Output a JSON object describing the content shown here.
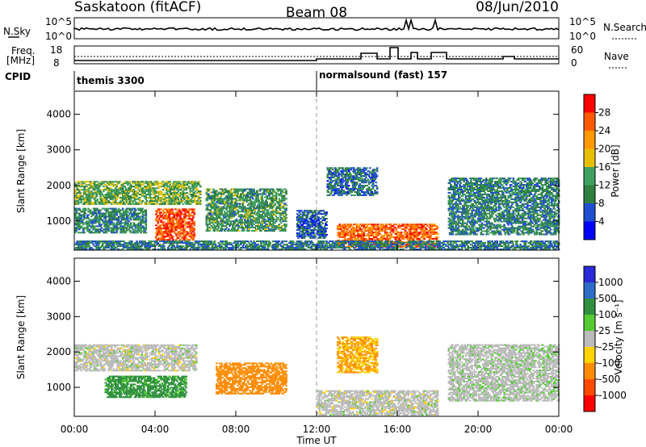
{
  "header": {
    "title_left": "Saskatoon (fitACF)",
    "title_center": "Beam 08",
    "title_right": "08/Jun/2010"
  },
  "panels": {
    "nsky": {
      "left_label": "N.Sky",
      "right_label": "N.Search",
      "tick_top": "10^5",
      "tick_bottom": "10^0",
      "ylim_log10": [
        0,
        5
      ]
    },
    "freq": {
      "left_label_1": "Freq.",
      "left_label_2": "[MHz]",
      "left_tick_top": "18",
      "left_tick_bottom": "8",
      "right_label": "Nave",
      "right_tick_top": "60",
      "right_tick_bottom": "0"
    },
    "cpid": {
      "label": "CPID",
      "entries": [
        {
          "text": "themis 3300",
          "start_hour": 0
        },
        {
          "text": "normalsound (fast) 157",
          "start_hour": 12
        }
      ]
    }
  },
  "xaxis": {
    "label": "Time UT",
    "ticks": [
      "00:00",
      "04:00",
      "08:00",
      "12:00",
      "16:00",
      "20:00",
      "00:00"
    ]
  },
  "yaxis": {
    "label": "Slant Range [km]",
    "ticks": [
      "1000",
      "2000",
      "3000",
      "4000"
    ]
  },
  "colorbars": {
    "power": {
      "label": "Power [dB]",
      "ticks": [
        "4",
        "8",
        "12",
        "16",
        "20",
        "24",
        "28"
      ],
      "colors": [
        "#0000ff",
        "#1f4ed0",
        "#2f7f3f",
        "#3fa060",
        "#e6c000",
        "#ff9900",
        "#ff5a00",
        "#ff0000"
      ]
    },
    "velocity": {
      "label": "Velocity [m s⁻¹]",
      "ticks": [
        "1000",
        "500",
        "100",
        "25",
        "-25",
        "-100",
        "-500",
        "-1000"
      ],
      "colors": [
        "#2a2ad8",
        "#2e6cc8",
        "#2f8f3f",
        "#55cc33",
        "#bbbbbb",
        "#ffd200",
        "#ff8c00",
        "#ff4a00",
        "#ff0000"
      ]
    }
  },
  "chart_data": [
    {
      "type": "heatmap",
      "title": "",
      "xlabel": "Time UT",
      "ylabel": "Slant Range [km]",
      "colorbar_label": "Power [dB]",
      "xlim_hours": [
        0,
        24
      ],
      "ylim_km": [
        180,
        4650
      ],
      "clim": [
        0,
        32
      ],
      "regions": [
        {
          "t0": 0.0,
          "t1": 6.2,
          "r0": 1450,
          "r1": 2100,
          "v": 14
        },
        {
          "t0": 0.0,
          "t1": 3.5,
          "r0": 650,
          "r1": 1350,
          "v": 11
        },
        {
          "t0": 4.0,
          "t1": 5.9,
          "r0": 450,
          "r1": 1350,
          "v": 27
        },
        {
          "t0": 6.5,
          "t1": 10.5,
          "r0": 700,
          "r1": 1900,
          "v": 12
        },
        {
          "t0": 11.0,
          "t1": 12.5,
          "r0": 500,
          "r1": 1300,
          "v": 7
        },
        {
          "t0": 12.5,
          "t1": 15.0,
          "r0": 1700,
          "r1": 2500,
          "v": 8
        },
        {
          "t0": 13.0,
          "t1": 18.0,
          "r0": 250,
          "r1": 900,
          "v": 25
        },
        {
          "t0": 18.5,
          "t1": 24.0,
          "r0": 600,
          "r1": 2200,
          "v": 10
        },
        {
          "t0": 0.0,
          "t1": 24.0,
          "r0": 180,
          "r1": 450,
          "v": 9
        }
      ]
    },
    {
      "type": "heatmap",
      "title": "",
      "xlabel": "Time UT",
      "ylabel": "Slant Range [km]",
      "colorbar_label": "Velocity [m s⁻¹]",
      "xlim_hours": [
        0,
        24
      ],
      "ylim_km": [
        180,
        4650
      ],
      "regions": [
        {
          "t0": 0.0,
          "t1": 6.0,
          "r0": 1450,
          "r1": 2200,
          "v": 0
        },
        {
          "t0": 1.5,
          "t1": 5.5,
          "r0": 700,
          "r1": 1300,
          "v": 80
        },
        {
          "t0": 7.0,
          "t1": 10.5,
          "r0": 800,
          "r1": 1700,
          "v": -200
        },
        {
          "t0": 12.0,
          "t1": 18.0,
          "r0": 200,
          "r1": 900,
          "v": 0
        },
        {
          "t0": 13.0,
          "t1": 15.0,
          "r0": 1400,
          "r1": 2400,
          "v": -60
        },
        {
          "t0": 18.5,
          "t1": 24.0,
          "r0": 600,
          "r1": 2200,
          "v": 5
        }
      ]
    }
  ]
}
